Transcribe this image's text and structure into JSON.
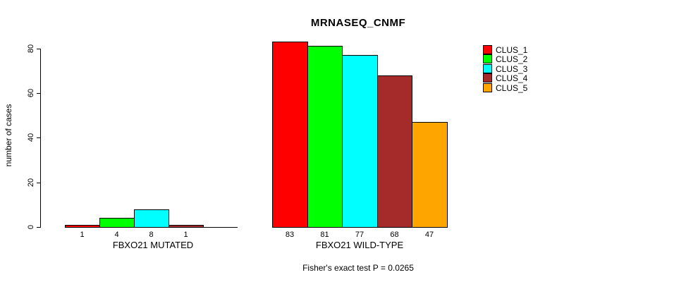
{
  "chart_data": {
    "type": "bar",
    "title": "MRNASEQ_CNMF",
    "ylabel": "number of cases",
    "xlabel": "",
    "ylim": [
      0,
      80
    ],
    "yticks": [
      0,
      20,
      40,
      60,
      80
    ],
    "grid": false,
    "legend_position": "top-right",
    "categories": [
      "FBXO21 MUTATED",
      "FBXO21 WILD-TYPE"
    ],
    "series": [
      {
        "name": "CLUS_1",
        "color": "#ff0000",
        "values": [
          1,
          83
        ]
      },
      {
        "name": "CLUS_2",
        "color": "#00ff00",
        "values": [
          4,
          81
        ]
      },
      {
        "name": "CLUS_3",
        "color": "#00ffff",
        "values": [
          8,
          77
        ]
      },
      {
        "name": "CLUS_4",
        "color": "#a52a2a",
        "values": [
          1,
          68
        ]
      },
      {
        "name": "CLUS_5",
        "color": "#ffa500",
        "values": [
          0,
          47
        ]
      }
    ],
    "bar_labels": [
      [
        "1",
        "4",
        "8",
        "1",
        ""
      ],
      [
        "83",
        "81",
        "77",
        "68",
        "47"
      ]
    ],
    "footnote": "Fisher's exact test P = 0.0265",
    "axis_color": "#000000",
    "background_color": "#ffffff"
  }
}
